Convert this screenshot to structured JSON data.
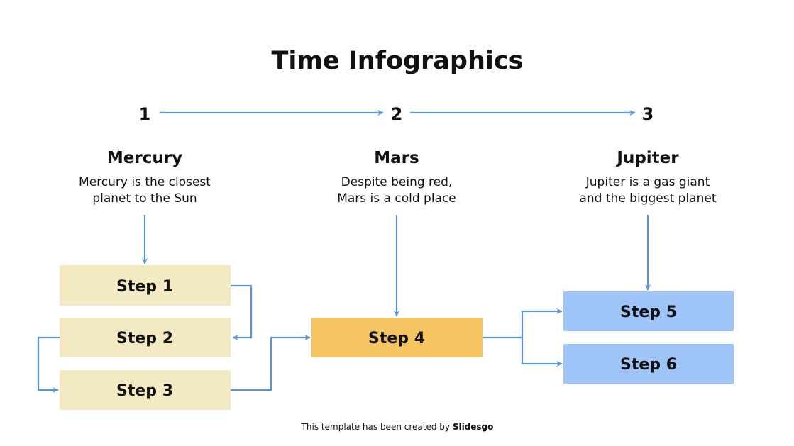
{
  "title": "Time Infographics",
  "colors": {
    "arrow": "#5b93d9",
    "step_beige": "#f3e9c3",
    "step_orange": "#f5c561",
    "step_blue": "#9fc5f8"
  },
  "stages": [
    {
      "number": "1",
      "name": "Mercury",
      "desc_line1": "Mercury is the closest",
      "desc_line2": "planet to the Sun"
    },
    {
      "number": "2",
      "name": "Mars",
      "desc_line1": "Despite being red,",
      "desc_line2": "Mars is a cold place"
    },
    {
      "number": "3",
      "name": "Jupiter",
      "desc_line1": "Jupiter is a gas giant",
      "desc_line2": "and the biggest planet"
    }
  ],
  "steps": [
    "Step 1",
    "Step 2",
    "Step 3",
    "Step 4",
    "Step 5",
    "Step 6"
  ],
  "footer": {
    "text": "This template has been created by ",
    "brand": "Slidesgo"
  }
}
